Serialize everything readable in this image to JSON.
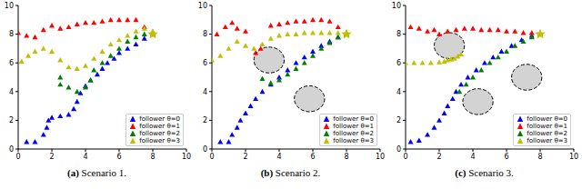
{
  "chart_data": [
    {
      "type": "scatter",
      "title": "(a) Scenario 1.",
      "xlim": [
        0,
        10
      ],
      "ylim": [
        0,
        10
      ],
      "xticks": [
        0,
        2,
        4,
        6,
        8,
        10
      ],
      "yticks": [
        0,
        2,
        4,
        6,
        8,
        10
      ],
      "legend": "lower right",
      "obstacles": [],
      "target": {
        "x": 8,
        "y": 8,
        "color": "#c0c000",
        "marker": "star"
      },
      "series": [
        {
          "name": "follower θ=0",
          "color": "#0000ff",
          "marker": "triangle",
          "x": [
            0.5,
            1,
            1.5,
            1.7,
            1.8,
            2,
            2.5,
            3,
            3.3,
            3.5,
            3.7,
            4,
            4.3,
            4.7,
            5,
            5.3,
            5.7,
            6,
            6.5,
            7,
            7.5,
            8
          ],
          "values": [
            0.5,
            0.5,
            1,
            1.5,
            2,
            2.2,
            2.3,
            2.4,
            2.8,
            3.3,
            3.9,
            4.4,
            4.8,
            5.2,
            5.6,
            6,
            6.3,
            6.7,
            7,
            7.3,
            7.7,
            8
          ]
        },
        {
          "name": "follower θ=1",
          "color": "#ff0000",
          "marker": "triangle",
          "x": [
            0,
            0.5,
            1,
            1.5,
            2,
            2.5,
            3,
            3.5,
            4,
            4.5,
            5,
            5.5,
            6,
            6.5,
            7,
            7.5,
            8
          ],
          "values": [
            8.1,
            7.9,
            7.8,
            8.3,
            8.6,
            8.4,
            8.5,
            8.7,
            8.8,
            8.8,
            8.9,
            9,
            9,
            9,
            9,
            8.5,
            8
          ]
        },
        {
          "name": "follower θ=2",
          "color": "#008000",
          "marker": "triangle",
          "x": [
            2.5,
            2.5,
            3,
            3.5,
            4,
            4.3,
            4.5,
            5,
            5.5,
            6,
            6.5,
            7,
            7.5,
            8
          ],
          "values": [
            5,
            4.5,
            4.3,
            4,
            4.3,
            4.8,
            5.5,
            6,
            6.5,
            7,
            7.5,
            7.8,
            8,
            8
          ]
        },
        {
          "name": "follower θ=3",
          "color": "#c0c000",
          "marker": "triangle",
          "x": [
            0.2,
            0.6,
            1,
            1.5,
            2,
            2.5,
            3,
            3.5,
            4,
            4.5,
            5,
            5.5,
            6,
            6.5,
            7,
            7.5,
            8
          ],
          "values": [
            6.1,
            6.5,
            6.8,
            7,
            6.8,
            6.2,
            5.7,
            5.6,
            5.8,
            6.3,
            6.8,
            7.3,
            7.6,
            7.9,
            8.2,
            8.4,
            8.2
          ]
        }
      ]
    },
    {
      "type": "scatter",
      "title": "(b) Scenario 2.",
      "xlim": [
        0,
        10
      ],
      "ylim": [
        0,
        10
      ],
      "xticks": [
        0,
        2,
        4,
        6,
        8,
        10
      ],
      "yticks": [
        0,
        2,
        4,
        6,
        8,
        10
      ],
      "legend": "lower right",
      "obstacles": [
        {
          "x": 3.4,
          "y": 6.2,
          "r": 0.9
        },
        {
          "x": 5.8,
          "y": 3.5,
          "r": 0.9
        }
      ],
      "target": {
        "x": 8,
        "y": 8,
        "color": "#c0c000",
        "marker": "star"
      },
      "series": [
        {
          "name": "follower θ=0",
          "color": "#0000ff",
          "marker": "triangle",
          "x": [
            0.5,
            1,
            1.2,
            1.5,
            1.7,
            2,
            2.3,
            2.6,
            3,
            3.5,
            4,
            4.5,
            5,
            5.5,
            6,
            6.5,
            7,
            7.5,
            8
          ],
          "values": [
            0.5,
            0.5,
            1,
            1.5,
            2,
            2.5,
            3,
            3.5,
            4,
            4.5,
            5,
            5.5,
            6,
            6.4,
            6.8,
            7.2,
            7.5,
            7.8,
            8
          ]
        },
        {
          "name": "follower θ=1",
          "color": "#ff0000",
          "marker": "triangle",
          "x": [
            0.3,
            0.8,
            1.2,
            1.5,
            2,
            2.6,
            2.9,
            3.5,
            4,
            4.5,
            5,
            5.5,
            6,
            6.5,
            7,
            7.5,
            8
          ],
          "values": [
            8,
            8.5,
            8.8,
            8.4,
            8.2,
            6.7,
            7,
            8.6,
            8.7,
            8.8,
            8.9,
            8.9,
            9,
            9,
            8.9,
            8.5,
            8
          ]
        },
        {
          "name": "follower θ=2",
          "color": "#008000",
          "marker": "triangle",
          "x": [
            3,
            3.5,
            4,
            4.5,
            5,
            5.5,
            6,
            6.5,
            7,
            7.5,
            8
          ],
          "values": [
            4.9,
            4.6,
            4.8,
            5.2,
            5.6,
            6,
            6.5,
            7,
            7.4,
            7.8,
            8
          ]
        },
        {
          "name": "follower θ=3",
          "color": "#c0c000",
          "marker": "triangle",
          "x": [
            0,
            0.5,
            1,
            1.5,
            2,
            2.5,
            3,
            3.5,
            4,
            4.5,
            5,
            5.5,
            6,
            6.5,
            7,
            7.5,
            8
          ],
          "values": [
            6.2,
            6.5,
            7,
            7.5,
            7.2,
            7,
            7.3,
            7.7,
            7.9,
            8,
            8,
            8.1,
            8.1,
            8.1,
            8.1,
            8.1,
            8.1
          ]
        }
      ]
    },
    {
      "type": "scatter",
      "title": "(c) Scenario 3.",
      "xlim": [
        0,
        10
      ],
      "ylim": [
        0,
        10
      ],
      "xticks": [
        0,
        2,
        4,
        6,
        8,
        10
      ],
      "yticks": [
        0,
        2,
        4,
        6,
        8,
        10
      ],
      "legend": "lower right",
      "obstacles": [
        {
          "x": 2.6,
          "y": 7.2,
          "r": 0.9
        },
        {
          "x": 7.2,
          "y": 5,
          "r": 0.9
        },
        {
          "x": 4.3,
          "y": 3.3,
          "r": 0.9
        }
      ],
      "target": {
        "x": 8,
        "y": 8,
        "color": "#c0c000",
        "marker": "star"
      },
      "series": [
        {
          "name": "follower θ=0",
          "color": "#0000ff",
          "marker": "triangle",
          "x": [
            0.3,
            0.8,
            1.3,
            1.7,
            2,
            2.3,
            2.5,
            2.8,
            3,
            3.3,
            3.7,
            4.2,
            4.7,
            5.2,
            5.7,
            6.3,
            6.9,
            7.5,
            8
          ],
          "values": [
            0.5,
            0.6,
            1,
            1.5,
            2,
            2.5,
            3,
            3.5,
            4,
            4.5,
            5,
            5.5,
            6,
            6.4,
            6.8,
            7.2,
            7.6,
            7.9,
            8
          ]
        },
        {
          "name": "follower θ=1",
          "color": "#ff0000",
          "marker": "triangle",
          "x": [
            0.3,
            0.8,
            1.3,
            1.7,
            2,
            2.5,
            3,
            3.5,
            4,
            4.5,
            5,
            5.5,
            6,
            6.5,
            7,
            7.5,
            8
          ],
          "values": [
            8.5,
            8.4,
            8.2,
            8.3,
            8,
            8.2,
            8.3,
            8.4,
            8.4,
            8.3,
            8.3,
            8.3,
            8.2,
            8.2,
            8.1,
            8.1,
            8
          ]
        },
        {
          "name": "follower θ=2",
          "color": "#008000",
          "marker": "triangle",
          "x": [
            3.2,
            3.6,
            4,
            4.5,
            5,
            5.5,
            6,
            6.5,
            7,
            7.5,
            8
          ],
          "values": [
            4,
            4.5,
            5,
            5.5,
            6,
            6.4,
            6.8,
            7.2,
            7.5,
            7.8,
            8
          ]
        },
        {
          "name": "follower θ=3",
          "color": "#c0c000",
          "marker": "triangle",
          "x": [
            0,
            0.5,
            1,
            1.5,
            2,
            2.3,
            2.5,
            2.7,
            2.9,
            3.1,
            3.3
          ],
          "values": [
            6,
            6,
            6,
            6,
            6.05,
            6.1,
            6.2,
            6.25,
            6.3,
            6.45,
            6.6
          ]
        }
      ]
    }
  ]
}
